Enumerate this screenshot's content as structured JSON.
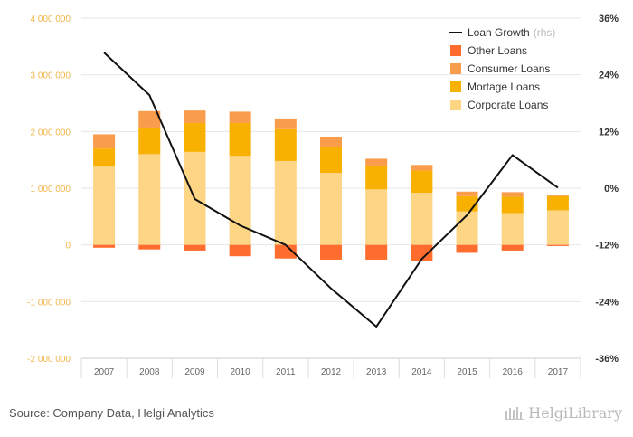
{
  "chart_data": {
    "type": "bar",
    "stacked": true,
    "categories": [
      "2007",
      "2008",
      "2009",
      "2010",
      "2011",
      "2012",
      "2013",
      "2014",
      "2015",
      "2016",
      "2017"
    ],
    "series": [
      {
        "name": "Corporate Loans",
        "color": "#fdd584",
        "values": [
          1380000,
          1600000,
          1640000,
          1570000,
          1480000,
          1270000,
          980000,
          920000,
          590000,
          560000,
          610000
        ]
      },
      {
        "name": "Mortage Loans",
        "color": "#f8b100",
        "values": [
          320000,
          470000,
          510000,
          580000,
          560000,
          460000,
          420000,
          390000,
          270000,
          290000,
          250000
        ]
      },
      {
        "name": "Consumer Loans",
        "color": "#f99c4b",
        "values": [
          250000,
          290000,
          220000,
          200000,
          190000,
          180000,
          120000,
          100000,
          80000,
          80000,
          20000
        ]
      },
      {
        "name": "Other Loans",
        "color": "#fe6d2e",
        "values": [
          -50000,
          -80000,
          -100000,
          -200000,
          -240000,
          -260000,
          -260000,
          -290000,
          -140000,
          -100000,
          -20000
        ]
      }
    ],
    "line_series": {
      "name": "Loan Growth",
      "unit": "(rhs)",
      "color": "#111111",
      "values": [
        28.7,
        19.7,
        -2.3,
        -7.9,
        -12.0,
        -21.2,
        -29.3,
        -15.0,
        -5.7,
        7.0,
        0.1
      ]
    },
    "ylim_left": [
      -2000000,
      4000000
    ],
    "yticks_left": [
      4000000,
      3000000,
      2000000,
      1000000,
      0,
      -1000000,
      -2000000
    ],
    "yticks_left_labels": [
      "4 000 000",
      "3 000 000",
      "2 000 000",
      "1 000 000",
      "0",
      "-1 000 000",
      "-2 000 000"
    ],
    "ylim_right": [
      -36,
      36
    ],
    "yticks_right": [
      36,
      24,
      12,
      0,
      -12,
      -24,
      -36
    ],
    "yticks_right_labels": [
      "36%",
      "24%",
      "12%",
      "0%",
      "-12%",
      "-24%",
      "-36%"
    ],
    "legend_position": "top-right",
    "grid": true
  },
  "legend": [
    {
      "label": "Loan Growth",
      "unit": "(rhs)",
      "kind": "line",
      "color": "#111111"
    },
    {
      "label": "Other Loans",
      "kind": "box",
      "color": "#fe6d2e"
    },
    {
      "label": "Consumer Loans",
      "kind": "box",
      "color": "#f99c4b"
    },
    {
      "label": "Mortage Loans",
      "kind": "box",
      "color": "#f8b100"
    },
    {
      "label": "Corporate Loans",
      "kind": "box",
      "color": "#fdd584"
    }
  ],
  "footer": {
    "source": "Source: Company Data, Helgi Analytics",
    "brand": "HelgiLibrary"
  }
}
